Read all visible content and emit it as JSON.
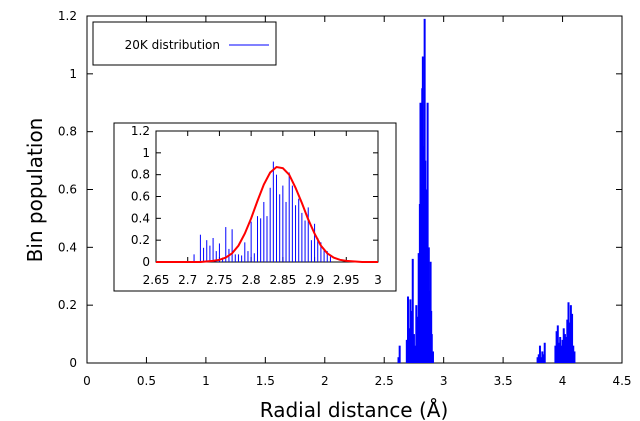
{
  "chart_data": [
    {
      "id": "main",
      "type": "bar",
      "xlabel": "Radial distance (Å)",
      "ylabel": "Bin population",
      "xlim": [
        0,
        4.5
      ],
      "ylim": [
        0,
        1.2
      ],
      "x_ticks": [
        "0",
        "0.5",
        "1",
        "1.5",
        "2",
        "2.5",
        "3",
        "3.5",
        "4",
        "4.5"
      ],
      "y_ticks": [
        "0",
        "0.2",
        "0.4",
        "0.6",
        "0.8",
        "1",
        "1.2"
      ],
      "legend": {
        "label": "20K distribution",
        "placement": "top-left",
        "color": "#0000ff"
      },
      "series": [
        {
          "name": "20K distribution",
          "color": "#0000ff",
          "x": [
            2.62,
            2.63,
            2.69,
            2.7,
            2.71,
            2.72,
            2.73,
            2.74,
            2.75,
            2.76,
            2.77,
            2.78,
            2.79,
            2.795,
            2.8,
            2.805,
            2.81,
            2.815,
            2.82,
            2.825,
            2.83,
            2.835,
            2.84,
            2.845,
            2.85,
            2.855,
            2.86,
            2.865,
            2.87,
            2.875,
            2.88,
            2.885,
            2.89,
            2.895,
            2.9,
            2.91,
            3.79,
            3.8,
            3.81,
            3.82,
            3.83,
            3.84,
            3.85,
            3.94,
            3.95,
            3.96,
            3.97,
            3.98,
            3.99,
            4.0,
            4.01,
            4.02,
            4.03,
            4.04,
            4.05,
            4.06,
            4.07,
            4.08,
            4.09,
            4.1
          ],
          "values": [
            0.02,
            0.06,
            0.08,
            0.23,
            0.12,
            0.22,
            0.18,
            0.36,
            0.1,
            0.06,
            0.2,
            0.16,
            0.38,
            0.25,
            0.55,
            0.9,
            0.45,
            0.62,
            0.95,
            1.06,
            0.35,
            0.75,
            1.19,
            0.7,
            0.55,
            0.6,
            0.42,
            0.9,
            0.3,
            0.4,
            0.25,
            0.15,
            0.35,
            0.18,
            0.1,
            0.04,
            0.02,
            0.03,
            0.06,
            0.02,
            0.04,
            0.03,
            0.07,
            0.06,
            0.11,
            0.13,
            0.07,
            0.09,
            0.06,
            0.08,
            0.12,
            0.1,
            0.09,
            0.15,
            0.21,
            0.14,
            0.2,
            0.17,
            0.06,
            0.04
          ]
        }
      ]
    },
    {
      "id": "inset",
      "type": "bar",
      "xlim": [
        2.65,
        3.0
      ],
      "ylim": [
        0,
        1.2
      ],
      "x_ticks": [
        "2.65",
        "2.7",
        "2.75",
        "2.8",
        "2.85",
        "2.9",
        "2.95",
        "3"
      ],
      "y_ticks": [
        "0",
        "0.2",
        "0.4",
        "0.6",
        "0.8",
        "1",
        "1.2"
      ],
      "series": [
        {
          "name": "",
          "color": "#0000ff",
          "x": [
            2.71,
            2.72,
            2.725,
            2.73,
            2.735,
            2.74,
            2.745,
            2.75,
            2.755,
            2.76,
            2.765,
            2.77,
            2.775,
            2.78,
            2.785,
            2.79,
            2.795,
            2.8,
            2.805,
            2.81,
            2.815,
            2.82,
            2.825,
            2.83,
            2.835,
            2.84,
            2.845,
            2.85,
            2.855,
            2.86,
            2.865,
            2.87,
            2.875,
            2.88,
            2.885,
            2.89,
            2.895,
            2.9,
            2.905,
            2.91,
            2.915,
            2.92,
            2.925
          ],
          "values": [
            0.07,
            0.25,
            0.13,
            0.2,
            0.15,
            0.22,
            0.1,
            0.17,
            0.04,
            0.32,
            0.12,
            0.3,
            0.07,
            0.07,
            0.06,
            0.18,
            0.1,
            0.37,
            0.08,
            0.42,
            0.4,
            0.55,
            0.42,
            0.68,
            0.92,
            0.8,
            0.62,
            0.7,
            0.55,
            0.82,
            0.7,
            0.52,
            0.58,
            0.45,
            0.38,
            0.5,
            0.2,
            0.35,
            0.22,
            0.18,
            0.12,
            0.1,
            0.05
          ]
        },
        {
          "name": "",
          "type": "line",
          "color": "#ff0000",
          "x": [
            2.65,
            2.675,
            2.7,
            2.72,
            2.74,
            2.75,
            2.76,
            2.77,
            2.78,
            2.79,
            2.8,
            2.81,
            2.82,
            2.83,
            2.84,
            2.85,
            2.86,
            2.87,
            2.88,
            2.89,
            2.9,
            2.91,
            2.92,
            2.93,
            2.94,
            2.95,
            2.975,
            3.0
          ],
          "values": [
            0.0,
            0.0,
            0.0,
            0.0,
            0.01,
            0.02,
            0.04,
            0.08,
            0.15,
            0.26,
            0.4,
            0.56,
            0.71,
            0.82,
            0.87,
            0.86,
            0.8,
            0.68,
            0.54,
            0.39,
            0.26,
            0.15,
            0.08,
            0.04,
            0.02,
            0.01,
            0.0,
            0.0
          ]
        }
      ]
    }
  ]
}
